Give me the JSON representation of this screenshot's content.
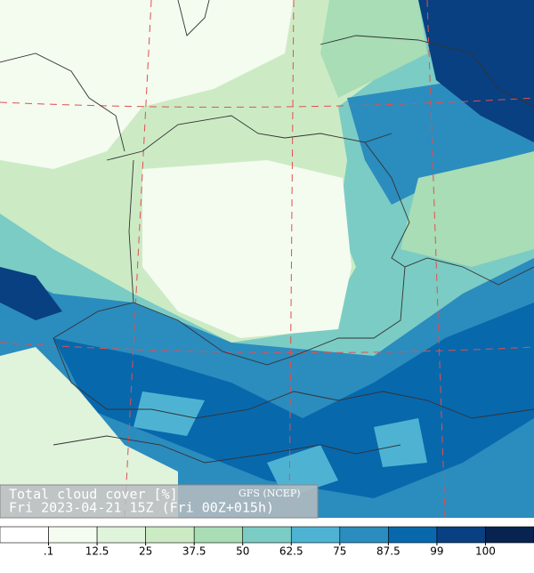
{
  "legend": {
    "title": "Total cloud cover [%]",
    "model": "GFS (NCEP)",
    "time": "Fri 2023-04-21 15Z (Fri 00Z+015h)"
  },
  "colorbar": {
    "levels": [
      {
        "value": 0.1,
        "label": ".1"
      },
      12.5,
      25,
      37.5,
      50,
      62.5,
      75,
      87.5,
      99,
      100
    ],
    "colors": [
      "#ffffff",
      "#f4fbef",
      "#e0f3db",
      "#ccebc5",
      "#a8ddb5",
      "#7bccc4",
      "#4eb3d3",
      "#2b8cbe",
      "#0868ac",
      "#084081",
      "#08234f"
    ]
  }
}
